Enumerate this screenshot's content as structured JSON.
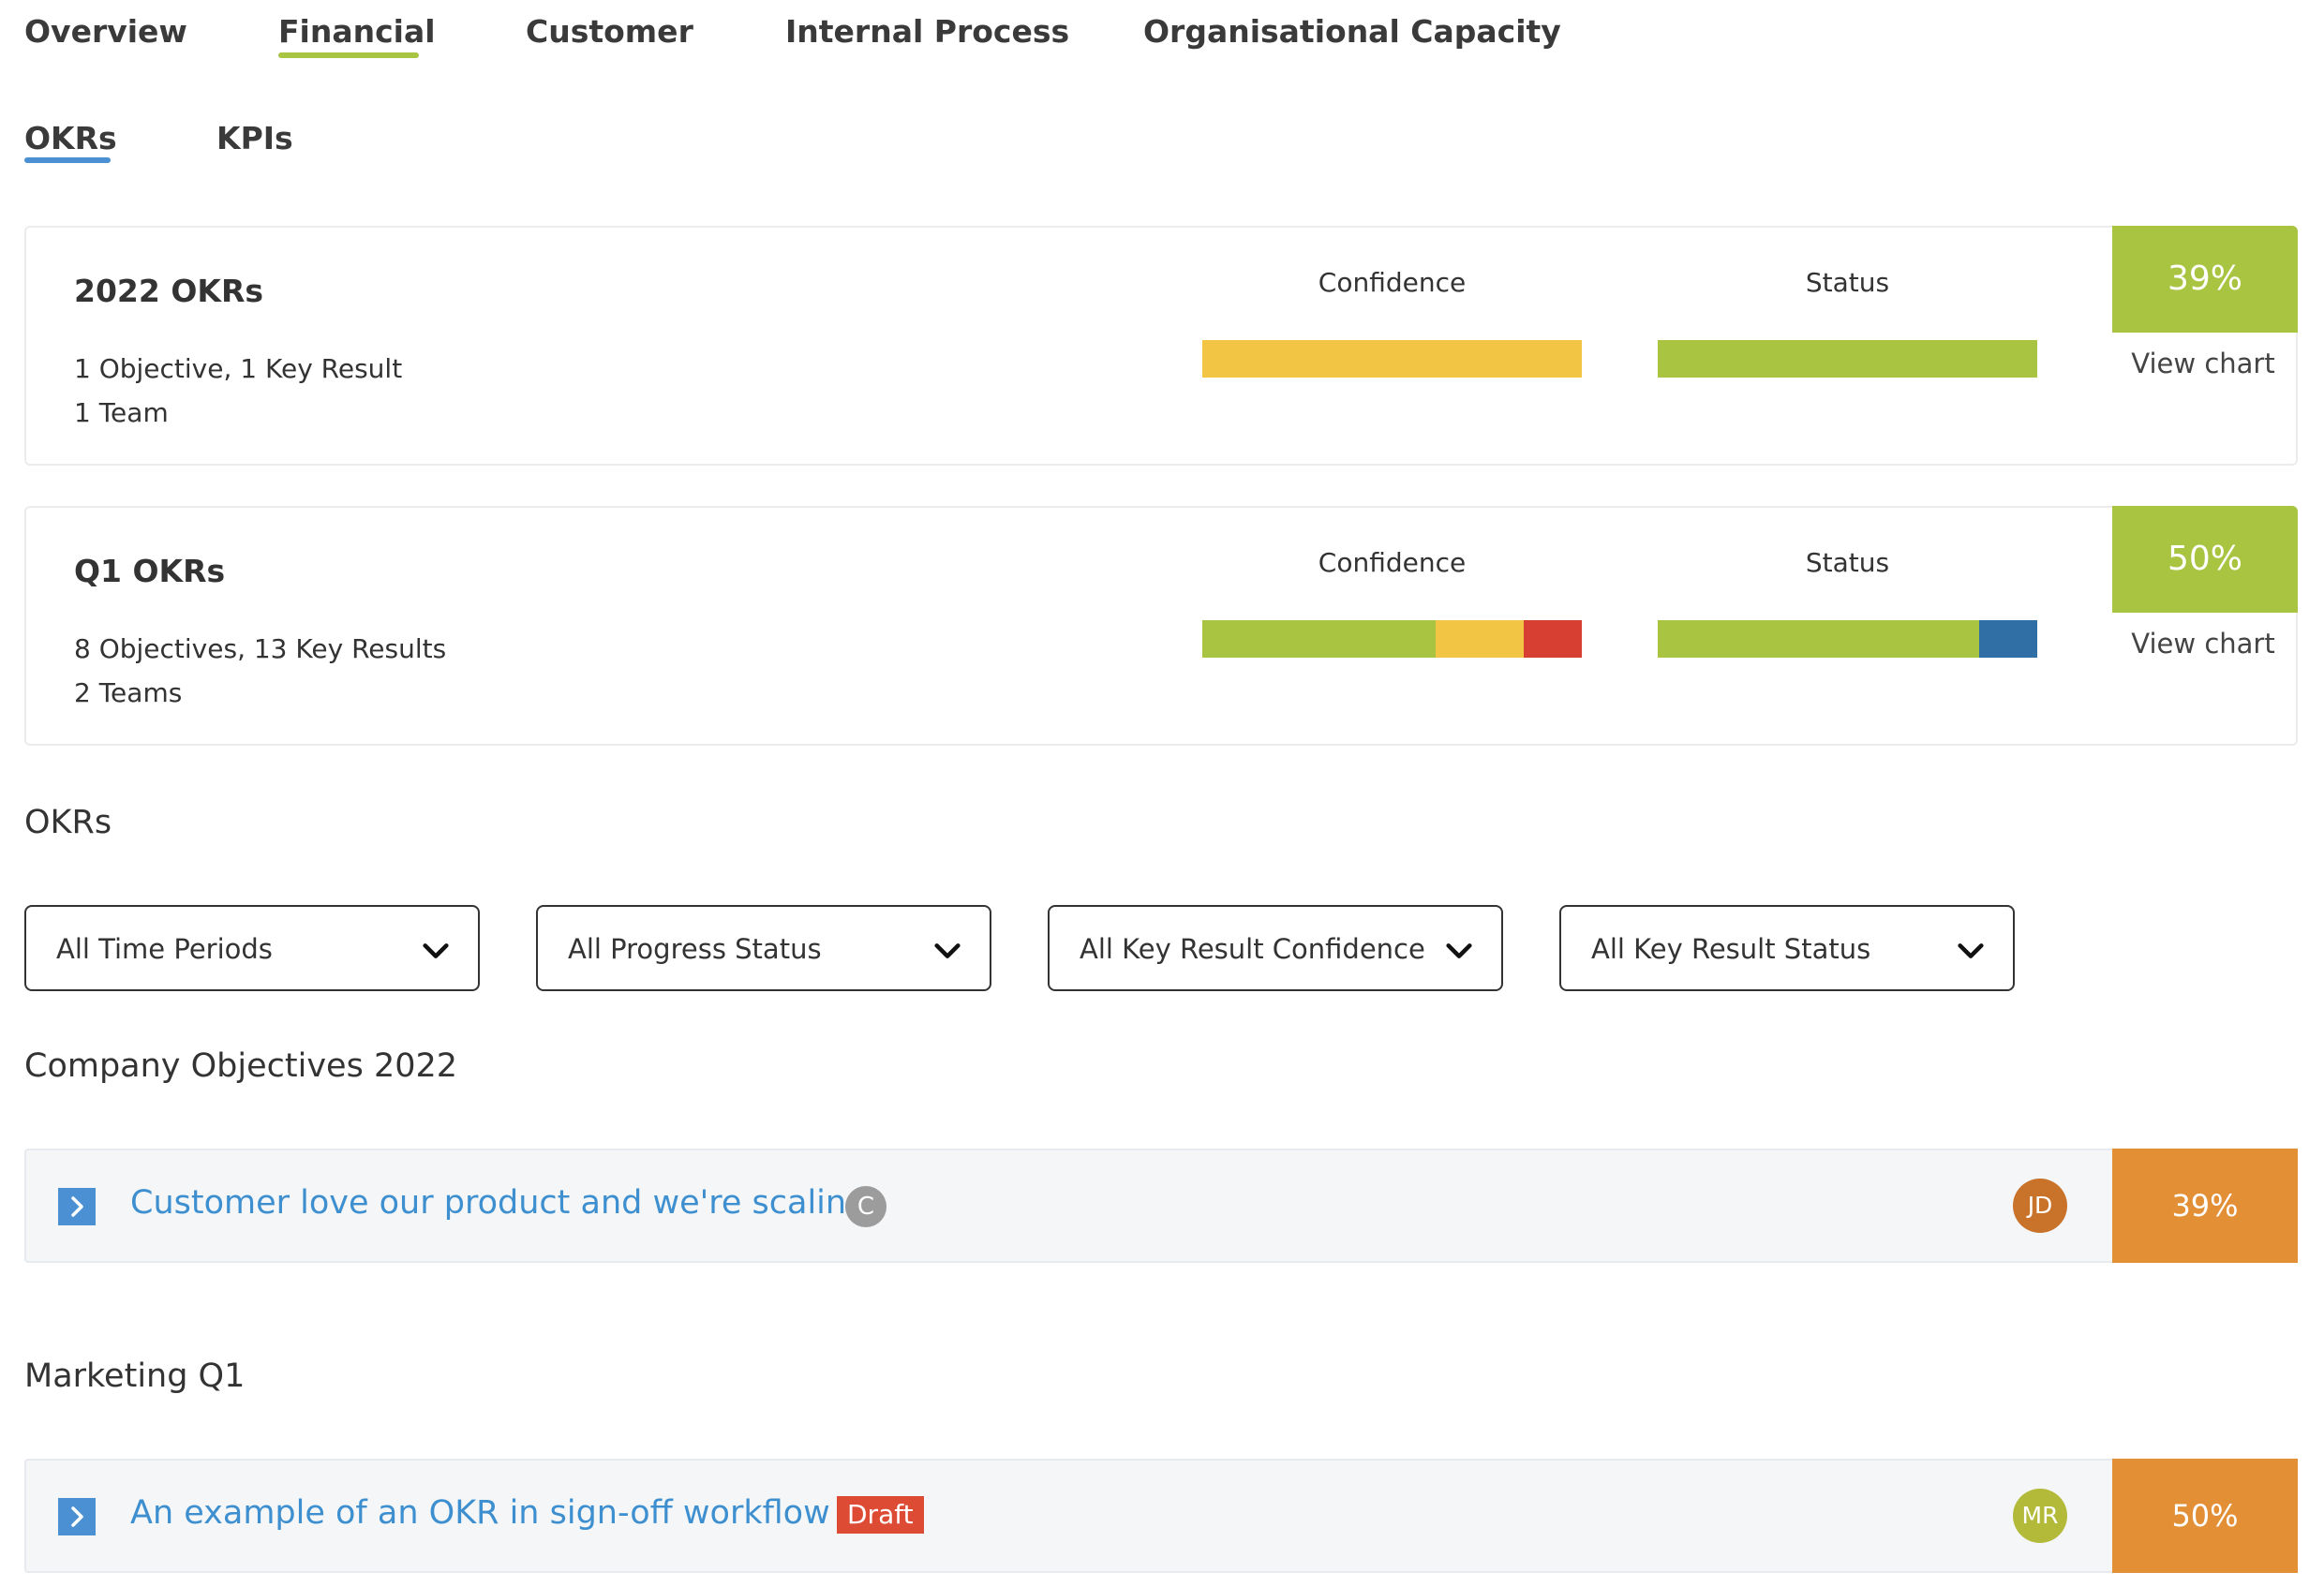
{
  "top_tabs": [
    {
      "label": "Overview"
    },
    {
      "label": "Financial"
    },
    {
      "label": "Customer"
    },
    {
      "label": "Internal Process"
    },
    {
      "label": "Organisational Capacity"
    }
  ],
  "active_top_tab": "Financial",
  "sub_tabs": [
    {
      "label": "OKRs"
    },
    {
      "label": "KPIs"
    }
  ],
  "active_sub_tab": "OKRs",
  "colors": {
    "green": "#a8c441",
    "yellow": "#f2c544",
    "red": "#d63f32",
    "blue": "#2f6fa6",
    "orange": "#e28f36",
    "link": "#3d8fcf",
    "tab_underline_top": "#a8c441",
    "tab_underline_sub": "#4a90d2"
  },
  "summary_cards": [
    {
      "title": "2022 OKRs",
      "line1": "1 Objective, 1 Key Result",
      "line2": "1 Team",
      "confidence_label": "Confidence",
      "status_label": "Status",
      "confidence_segments": [
        {
          "color": "yellow",
          "fraction": 1.0
        }
      ],
      "status_segments": [
        {
          "color": "green",
          "fraction": 1.0
        }
      ],
      "percent": "39%",
      "view_chart": "View chart"
    },
    {
      "title": "Q1 OKRs",
      "line1": "8 Objectives, 13 Key Results",
      "line2": "2 Teams",
      "confidence_label": "Confidence",
      "status_label": "Status",
      "confidence_segments": [
        {
          "color": "green",
          "fraction": 0.615
        },
        {
          "color": "yellow",
          "fraction": 0.231
        },
        {
          "color": "red",
          "fraction": 0.154
        }
      ],
      "status_segments": [
        {
          "color": "green",
          "fraction": 0.846
        },
        {
          "color": "blue",
          "fraction": 0.154
        }
      ],
      "percent": "50%",
      "view_chart": "View chart"
    }
  ],
  "okrs_heading": "OKRs",
  "filters": [
    {
      "label": "All Time Periods"
    },
    {
      "label": "All Progress Status"
    },
    {
      "label": "All Key Result Confidence"
    },
    {
      "label": "All Key Result Status"
    }
  ],
  "groups": [
    {
      "heading": "Company Objectives 2022",
      "objective": {
        "title": "Customer love our product and we're scaling!",
        "status_letter": "C",
        "avatar": "JD",
        "avatar_color": "#c8722a",
        "percent": "39%"
      }
    },
    {
      "heading": "Marketing Q1",
      "objective": {
        "title": "An example of an OKR in sign-off workflow",
        "badge": "Draft",
        "avatar": "MR",
        "avatar_color": "#b3ba3a",
        "percent": "50%"
      }
    }
  ]
}
